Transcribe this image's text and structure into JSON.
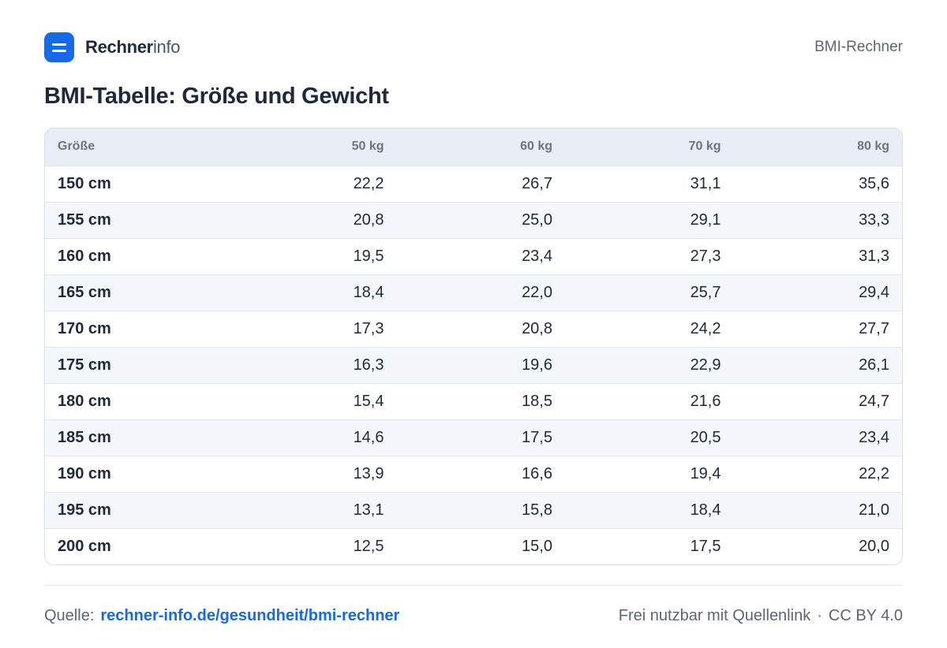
{
  "header": {
    "brand_bold": "Rechner",
    "brand_light": "info",
    "right_label": "BMI-Rechner"
  },
  "title": "BMI-Tabelle: Größe und Gewicht",
  "table": {
    "columns": [
      "Größe",
      "50 kg",
      "60 kg",
      "70 kg",
      "80 kg"
    ],
    "rows": [
      [
        "150 cm",
        "22,2",
        "26,7",
        "31,1",
        "35,6"
      ],
      [
        "155 cm",
        "20,8",
        "25,0",
        "29,1",
        "33,3"
      ],
      [
        "160 cm",
        "19,5",
        "23,4",
        "27,3",
        "31,3"
      ],
      [
        "165 cm",
        "18,4",
        "22,0",
        "25,7",
        "29,4"
      ],
      [
        "170 cm",
        "17,3",
        "20,8",
        "24,2",
        "27,7"
      ],
      [
        "175 cm",
        "16,3",
        "19,6",
        "22,9",
        "26,1"
      ],
      [
        "180 cm",
        "15,4",
        "18,5",
        "21,6",
        "24,7"
      ],
      [
        "185 cm",
        "14,6",
        "17,5",
        "20,5",
        "23,4"
      ],
      [
        "190 cm",
        "13,9",
        "16,6",
        "19,4",
        "22,2"
      ],
      [
        "195 cm",
        "13,1",
        "15,8",
        "18,4",
        "21,0"
      ],
      [
        "200 cm",
        "12,5",
        "15,0",
        "17,5",
        "20,0"
      ]
    ]
  },
  "footer": {
    "source_label": "Quelle:",
    "source_link": "rechner-info.de/gesundheit/bmi-rechner",
    "license_text": "Frei nutzbar mit Quellenlink",
    "separator": "·",
    "license": "CC BY 4.0"
  },
  "colors": {
    "accent": "#1769e8",
    "header_bg": "#e9eef6",
    "stripe_bg": "#f4f7fb"
  },
  "icons": {
    "logo": "menu-lines-icon"
  }
}
